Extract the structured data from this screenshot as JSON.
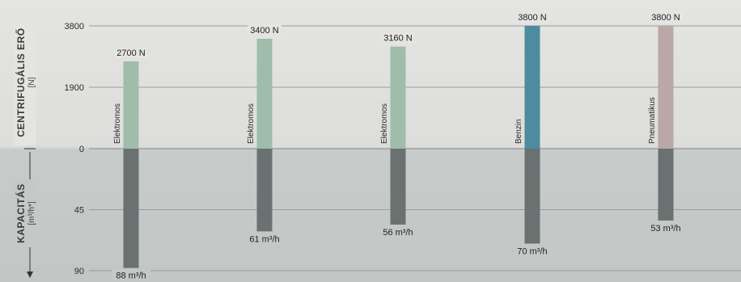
{
  "chart_data": {
    "type": "bar",
    "categories": [
      "Elektromos",
      "Elektromos",
      "Elektromos",
      "Benzin",
      "Pneumatikus"
    ],
    "upper_axis": {
      "label": "CENTRIFUGÁLIS ERŐ",
      "unit": "[N]",
      "ticks": [
        "3800",
        "1900",
        "0"
      ],
      "ylim": [
        0,
        3800
      ]
    },
    "lower_axis": {
      "label": "KAPACITÁS",
      "unit": "[m³/h*]",
      "ticks": [
        "45",
        "90"
      ],
      "ylim": [
        0,
        90
      ]
    },
    "series": [
      {
        "name": "CENTRIFUGÁLIS ERŐ",
        "values": [
          2700,
          3400,
          3160,
          3800,
          3800
        ],
        "labels": [
          "2700 N",
          "3400 N",
          "3160 N",
          "3800 N",
          "3800 N"
        ]
      },
      {
        "name": "KAPACITÁS",
        "values": [
          88,
          61,
          56,
          70,
          53
        ],
        "labels": [
          "88 m³/h",
          "61 m³/h",
          "56 m³/h",
          "70 m³/h",
          "53 m³/h"
        ]
      }
    ],
    "colors": {
      "Elektromos": "#9fbdaa",
      "Benzin": "#4d8ba0",
      "Pneumatikus": "#b9a8a6",
      "capacity": "#6b7070",
      "gridline": "#9a9a9a"
    },
    "grid": true
  }
}
